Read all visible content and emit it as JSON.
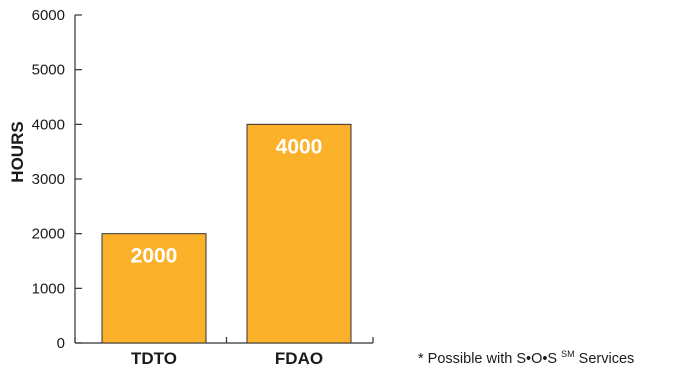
{
  "chart_data": {
    "type": "bar",
    "categories": [
      "TDTO",
      "FDAO"
    ],
    "values": [
      2000,
      4000
    ],
    "data_labels": [
      "2000",
      "4000"
    ],
    "title": "",
    "xlabel": "",
    "ylabel": "HOURS",
    "ylim": [
      0,
      6000
    ],
    "yticks": [
      0,
      1000,
      2000,
      3000,
      4000,
      5000,
      6000
    ],
    "ytick_labels": [
      "0",
      "1000",
      "2000",
      "3000",
      "4000",
      "5000",
      "6000"
    ],
    "grid": false,
    "legend": "none",
    "bar_color": "#FBB12A",
    "bar_outline_color": "#333333",
    "axis_color": "#333333"
  },
  "footnote": {
    "prefix": "* Possible with S•O•S",
    "superscript": "SM",
    "suffix": " Services"
  }
}
